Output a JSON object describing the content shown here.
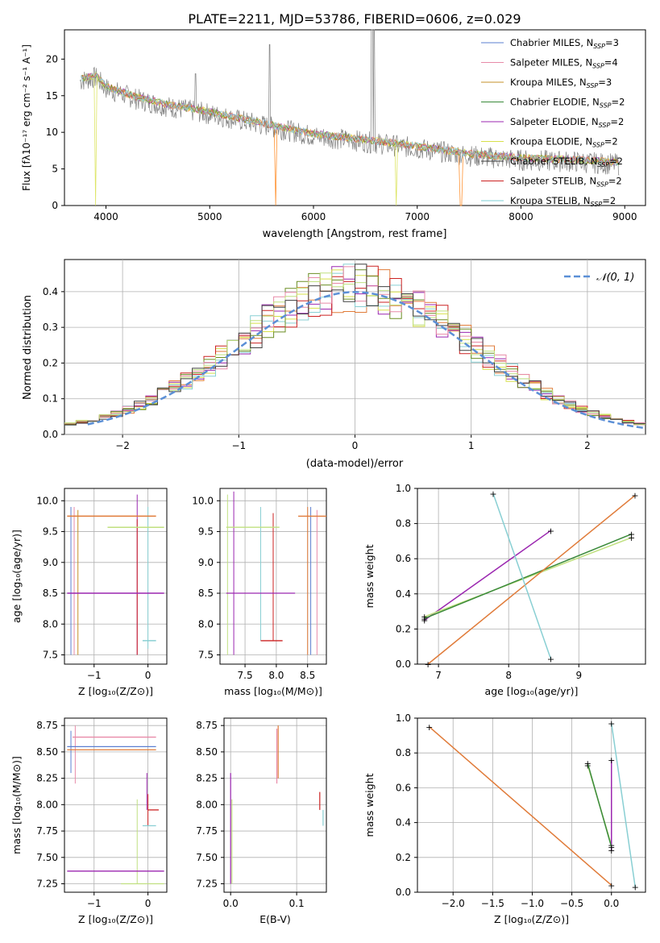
{
  "figure_title": "PLATE=2211, MJD=53786, FIBERID=0606, z=0.029",
  "colors": {
    "data": "#808080",
    "series": [
      "#5b7fd1",
      "#e88aa8",
      "#c5902a",
      "#3a8a3a",
      "#9b27b0",
      "#d7e04a",
      "#404040",
      "#cc2222",
      "#7ccfd6"
    ],
    "visible": [
      "#ff7f0e",
      "#e07b39",
      "#d7e04a",
      "#9b27b0",
      "#c0e080",
      "#89cfd3",
      "#6b8e23",
      "#e06060",
      "#8ec4d8"
    ],
    "gaussian": "#5b8fd6"
  },
  "chart_data": [
    {
      "type": "line",
      "title": "PLATE=2211, MJD=53786, FIBERID=0606, z=0.029",
      "xlabel": "wavelength [Angstrom, rest frame]",
      "ylabel": "Flux [fλ10⁻¹⁷ erg cm⁻² s⁻¹ A⁻¹]",
      "xlim": [
        3600,
        9200
      ],
      "ylim": [
        0,
        24
      ],
      "xticks": [
        "4000",
        "5000",
        "6000",
        "7000",
        "8000",
        "9000"
      ],
      "yticks": [
        "0",
        "5",
        "10",
        "15",
        "20"
      ],
      "legend": "top-right",
      "series": [
        {
          "name": "Chabrier MILES, N",
          "suffix": "=3"
        },
        {
          "name": "Salpeter MILES, N",
          "suffix": "=4"
        },
        {
          "name": "Kroupa MILES, N",
          "suffix": "=3"
        },
        {
          "name": "Chabrier ELODIE, N",
          "suffix": "=2"
        },
        {
          "name": "Salpeter ELODIE, N",
          "suffix": "=2"
        },
        {
          "name": "Kroupa ELODIE, N",
          "suffix": "=2"
        },
        {
          "name": "Chabrier STELIB, N",
          "suffix": "=2"
        },
        {
          "name": "Salpeter STELIB, N",
          "suffix": "=2"
        },
        {
          "name": "Kroupa STELIB, N",
          "suffix": "=2"
        }
      ],
      "legend_subscript": "SSP",
      "spectrum_trend": {
        "x": [
          3750,
          3900,
          4000,
          4300,
          4600,
          5000,
          5500,
          6000,
          6500,
          7000,
          7500,
          8000,
          8500,
          8950
        ],
        "y": [
          17,
          17.5,
          16,
          14.5,
          13.5,
          12.5,
          11,
          9.5,
          8.7,
          7.8,
          6.8,
          6.2,
          6.0,
          5.6
        ]
      }
    },
    {
      "type": "step",
      "xlabel": "(data-model)/error",
      "ylabel": "Normed distribution",
      "xlim": [
        -2.5,
        2.5
      ],
      "ylim": [
        0,
        0.49
      ],
      "xticks": [
        "−2",
        "−1",
        "0",
        "1",
        "2"
      ],
      "yticks": [
        "0.0",
        "0.1",
        "0.2",
        "0.3",
        "0.4"
      ],
      "legend": "top-right",
      "gaussian_label": "𝒩(0, 1)"
    },
    {
      "type": "errorbar",
      "xlabel": "Z [log₁₀(Z/Z⊙)]",
      "ylabel": "age  [log₁₀(age/yr)]",
      "xlim": [
        -1.55,
        0.35
      ],
      "ylim": [
        7.35,
        10.2
      ],
      "xticks": [
        "−1",
        "0"
      ],
      "yticks": [
        "7.5",
        "8.0",
        "8.5",
        "9.0",
        "9.5",
        "10.0"
      ]
    },
    {
      "type": "errorbar",
      "xlabel": "mass [log₁₀(M/M⊙)]",
      "ylabel": "",
      "xlim": [
        7.1,
        8.8
      ],
      "ylim": [
        7.35,
        10.2
      ],
      "xticks": [
        "7.5",
        "8.0",
        "8.5"
      ],
      "yticks": [
        "7.5",
        "8.0",
        "8.5",
        "9.0",
        "9.5",
        "10.0"
      ]
    },
    {
      "type": "line",
      "xlabel": "age  [log₁₀(age/yr)]",
      "ylabel": "mass weight",
      "xlim": [
        6.7,
        9.95
      ],
      "ylim": [
        0,
        1
      ],
      "xticks": [
        "7",
        "8",
        "9"
      ],
      "yticks": [
        "0.0",
        "0.2",
        "0.4",
        "0.6",
        "0.8",
        "1.0"
      ]
    },
    {
      "type": "errorbar",
      "xlabel": "Z [log₁₀(Z/Z⊙)]",
      "ylabel": "mass [log₁₀(M/M⊙)]",
      "xlim": [
        -1.55,
        0.35
      ],
      "ylim": [
        7.17,
        8.82
      ],
      "xticks": [
        "−1",
        "0"
      ],
      "yticks": [
        "7.25",
        "7.50",
        "7.75",
        "8.00",
        "8.25",
        "8.50",
        "8.75"
      ]
    },
    {
      "type": "errorbar",
      "xlabel": "E(B-V)",
      "ylabel": "",
      "xlim": [
        -0.01,
        0.145
      ],
      "ylim": [
        7.17,
        8.82
      ],
      "xticks": [
        "0.0",
        "0.1"
      ],
      "yticks": [
        "7.25",
        "7.50",
        "7.75",
        "8.00",
        "8.25",
        "8.50",
        "8.75"
      ]
    },
    {
      "type": "line",
      "xlabel": "Z [log₁₀(Z/Z⊙)]",
      "ylabel": "mass weight",
      "xlim": [
        -2.45,
        0.43
      ],
      "ylim": [
        0,
        1
      ],
      "xticks": [
        "−2.0",
        "−1.5",
        "−1.0",
        "−0.5",
        "0.0"
      ],
      "yticks": [
        "0.0",
        "0.2",
        "0.4",
        "0.6",
        "0.8",
        "1.0"
      ]
    }
  ]
}
